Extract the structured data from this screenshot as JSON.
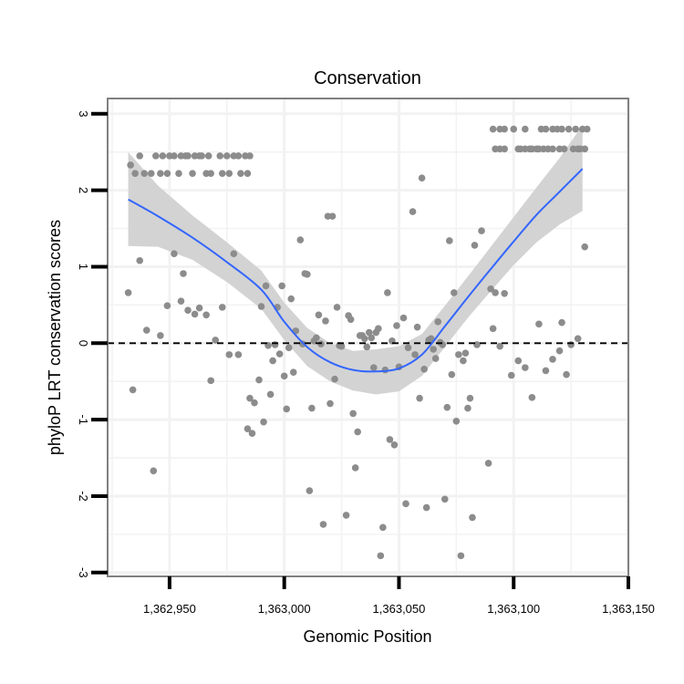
{
  "chart_data": {
    "type": "scatter",
    "title": "Conservation",
    "xlabel": "Genomic Position",
    "ylabel": "phyloP LRT conservation scores",
    "xlim": [
      1362923,
      1363150
    ],
    "ylim": [
      -3.05,
      3.2
    ],
    "x_ticks": [
      {
        "value": 1362950,
        "label": "1,362,950"
      },
      {
        "value": 1363000,
        "label": "1,363,000"
      },
      {
        "value": 1363050,
        "label": "1,363,050"
      },
      {
        "value": 1363100,
        "label": "1,363,100"
      },
      {
        "value": 1363150,
        "label": "1,363,150"
      }
    ],
    "y_ticks": [
      {
        "value": -3,
        "label": "-3"
      },
      {
        "value": -2,
        "label": "-2"
      },
      {
        "value": -1,
        "label": "-1"
      },
      {
        "value": 0,
        "label": "0"
      },
      {
        "value": 1,
        "label": "1"
      },
      {
        "value": 2,
        "label": "2"
      },
      {
        "value": 3,
        "label": "3"
      }
    ],
    "reference_line_y": 0,
    "colors": {
      "points": "#8c8c8c",
      "smooth": "#3366ff",
      "ribbon": "#d3d3d3",
      "grid": "#f2f2f2",
      "frame": "#808080"
    },
    "points": [
      {
        "x": 1362933,
        "y": 2.33
      },
      {
        "x": 1362935,
        "y": 2.22
      },
      {
        "x": 1362937,
        "y": 2.45
      },
      {
        "x": 1362939,
        "y": 2.22
      },
      {
        "x": 1362942,
        "y": 2.22
      },
      {
        "x": 1362944,
        "y": 2.45
      },
      {
        "x": 1362946,
        "y": 2.22
      },
      {
        "x": 1362947,
        "y": 2.45
      },
      {
        "x": 1362949,
        "y": 2.22
      },
      {
        "x": 1362950,
        "y": 2.45
      },
      {
        "x": 1362952,
        "y": 2.45
      },
      {
        "x": 1362954,
        "y": 2.22
      },
      {
        "x": 1362955,
        "y": 2.45
      },
      {
        "x": 1362957,
        "y": 2.45
      },
      {
        "x": 1362958,
        "y": 2.45
      },
      {
        "x": 1362960,
        "y": 2.22
      },
      {
        "x": 1362961,
        "y": 2.45
      },
      {
        "x": 1362963,
        "y": 2.45
      },
      {
        "x": 1362964,
        "y": 2.45
      },
      {
        "x": 1362966,
        "y": 2.22
      },
      {
        "x": 1362967,
        "y": 2.45
      },
      {
        "x": 1362968,
        "y": 2.22
      },
      {
        "x": 1362972,
        "y": 2.45
      },
      {
        "x": 1362973,
        "y": 2.22
      },
      {
        "x": 1362975,
        "y": 2.45
      },
      {
        "x": 1362976,
        "y": 2.22
      },
      {
        "x": 1362978,
        "y": 2.45
      },
      {
        "x": 1362980,
        "y": 2.45
      },
      {
        "x": 1362981,
        "y": 2.22
      },
      {
        "x": 1362983,
        "y": 2.45
      },
      {
        "x": 1362984,
        "y": 2.22
      },
      {
        "x": 1362985,
        "y": 2.45
      },
      {
        "x": 1362932,
        "y": 0.66
      },
      {
        "x": 1362934,
        "y": -0.61
      },
      {
        "x": 1362937,
        "y": 1.08
      },
      {
        "x": 1362940,
        "y": 0.17
      },
      {
        "x": 1362943,
        "y": -1.67
      },
      {
        "x": 1362946,
        "y": 0.1
      },
      {
        "x": 1362949,
        "y": 0.49
      },
      {
        "x": 1362952,
        "y": 1.17
      },
      {
        "x": 1362955,
        "y": 0.55
      },
      {
        "x": 1362956,
        "y": 0.91
      },
      {
        "x": 1362958,
        "y": 0.43
      },
      {
        "x": 1362961,
        "y": 0.38
      },
      {
        "x": 1362963,
        "y": 0.46
      },
      {
        "x": 1362966,
        "y": 0.37
      },
      {
        "x": 1362968,
        "y": -0.49
      },
      {
        "x": 1362970,
        "y": 0.04
      },
      {
        "x": 1362973,
        "y": 0.47
      },
      {
        "x": 1362976,
        "y": -0.15
      },
      {
        "x": 1362978,
        "y": 1.17
      },
      {
        "x": 1362980,
        "y": -0.15
      },
      {
        "x": 1362984,
        "y": -1.12
      },
      {
        "x": 1362985,
        "y": -0.72
      },
      {
        "x": 1362986,
        "y": -1.18
      },
      {
        "x": 1362987,
        "y": -0.78
      },
      {
        "x": 1362989,
        "y": -0.48
      },
      {
        "x": 1362990,
        "y": 0.48
      },
      {
        "x": 1362991,
        "y": -1.03
      },
      {
        "x": 1362992,
        "y": 0.75
      },
      {
        "x": 1362993,
        "y": -0.03
      },
      {
        "x": 1362994,
        "y": -0.67
      },
      {
        "x": 1362995,
        "y": -0.23
      },
      {
        "x": 1362996,
        "y": -0.02
      },
      {
        "x": 1362997,
        "y": 0.47
      },
      {
        "x": 1362998,
        "y": -0.14
      },
      {
        "x": 1362999,
        "y": 0.75
      },
      {
        "x": 1363000,
        "y": -0.43
      },
      {
        "x": 1363001,
        "y": -0.86
      },
      {
        "x": 1363002,
        "y": -0.06
      },
      {
        "x": 1363003,
        "y": 0.58
      },
      {
        "x": 1363004,
        "y": -0.38
      },
      {
        "x": 1363005,
        "y": 0.16
      },
      {
        "x": 1363007,
        "y": 1.35
      },
      {
        "x": 1363008,
        "y": -0.01
      },
      {
        "x": 1363009,
        "y": 0.91
      },
      {
        "x": 1363010,
        "y": 0.9
      },
      {
        "x": 1363011,
        "y": -1.93
      },
      {
        "x": 1363012,
        "y": -0.85
      },
      {
        "x": 1363013,
        "y": 0.03
      },
      {
        "x": 1363014,
        "y": 0.07
      },
      {
        "x": 1363015,
        "y": 0.37
      },
      {
        "x": 1363016,
        "y": -0.01
      },
      {
        "x": 1363017,
        "y": -2.37
      },
      {
        "x": 1363018,
        "y": 0.29
      },
      {
        "x": 1363019,
        "y": 1.66
      },
      {
        "x": 1363020,
        "y": -0.79
      },
      {
        "x": 1363021,
        "y": 1.66
      },
      {
        "x": 1363022,
        "y": -0.47
      },
      {
        "x": 1363023,
        "y": 0.47
      },
      {
        "x": 1363024,
        "y": -0.03
      },
      {
        "x": 1363025,
        "y": -0.04
      },
      {
        "x": 1363027,
        "y": -2.25
      },
      {
        "x": 1363028,
        "y": 0.36
      },
      {
        "x": 1363029,
        "y": 0.31
      },
      {
        "x": 1363030,
        "y": -0.92
      },
      {
        "x": 1363031,
        "y": -1.63
      },
      {
        "x": 1363032,
        "y": -1.16
      },
      {
        "x": 1363033,
        "y": 0.1
      },
      {
        "x": 1363034,
        "y": 0.1
      },
      {
        "x": 1363035,
        "y": 0.06
      },
      {
        "x": 1363036,
        "y": -0.05
      },
      {
        "x": 1363037,
        "y": 0.14
      },
      {
        "x": 1363038,
        "y": 0.07
      },
      {
        "x": 1363039,
        "y": -0.32
      },
      {
        "x": 1363040,
        "y": 0.14
      },
      {
        "x": 1363041,
        "y": 0.19
      },
      {
        "x": 1363042,
        "y": -2.78
      },
      {
        "x": 1363043,
        "y": -2.41
      },
      {
        "x": 1363044,
        "y": -0.35
      },
      {
        "x": 1363045,
        "y": 0.66
      },
      {
        "x": 1363046,
        "y": -1.26
      },
      {
        "x": 1363047,
        "y": 0.03
      },
      {
        "x": 1363048,
        "y": -1.33
      },
      {
        "x": 1363049,
        "y": 0.23
      },
      {
        "x": 1363050,
        "y": -0.31
      },
      {
        "x": 1363052,
        "y": 0.33
      },
      {
        "x": 1363053,
        "y": -2.1
      },
      {
        "x": 1363054,
        "y": -0.06
      },
      {
        "x": 1363056,
        "y": 1.72
      },
      {
        "x": 1363057,
        "y": -0.15
      },
      {
        "x": 1363058,
        "y": 0.21
      },
      {
        "x": 1363059,
        "y": -0.72
      },
      {
        "x": 1363060,
        "y": 2.16
      },
      {
        "x": 1363061,
        "y": -0.34
      },
      {
        "x": 1363062,
        "y": -2.15
      },
      {
        "x": 1363063,
        "y": 0.04
      },
      {
        "x": 1363064,
        "y": 0.06
      },
      {
        "x": 1363065,
        "y": -0.08
      },
      {
        "x": 1363066,
        "y": -0.2
      },
      {
        "x": 1363067,
        "y": 0.28
      },
      {
        "x": 1363068,
        "y": 0.01
      },
      {
        "x": 1363069,
        "y": -0.02
      },
      {
        "x": 1363070,
        "y": -2.04
      },
      {
        "x": 1363071,
        "y": -0.84
      },
      {
        "x": 1363072,
        "y": 1.34
      },
      {
        "x": 1363073,
        "y": -0.41
      },
      {
        "x": 1363074,
        "y": 0.66
      },
      {
        "x": 1363075,
        "y": -1.02
      },
      {
        "x": 1363076,
        "y": -0.15
      },
      {
        "x": 1363077,
        "y": -2.78
      },
      {
        "x": 1363078,
        "y": -0.23
      },
      {
        "x": 1363079,
        "y": -0.13
      },
      {
        "x": 1363080,
        "y": -0.85
      },
      {
        "x": 1363081,
        "y": -0.72
      },
      {
        "x": 1363082,
        "y": -2.28
      },
      {
        "x": 1363083,
        "y": 1.28
      },
      {
        "x": 1363084,
        "y": -0.02
      },
      {
        "x": 1363086,
        "y": 1.47
      },
      {
        "x": 1363089,
        "y": -1.57
      },
      {
        "x": 1363090,
        "y": 0.71
      },
      {
        "x": 1363091,
        "y": 0.19
      },
      {
        "x": 1363092,
        "y": 0.66
      },
      {
        "x": 1363094,
        "y": -0.04
      },
      {
        "x": 1363096,
        "y": 0.65
      },
      {
        "x": 1363099,
        "y": -0.42
      },
      {
        "x": 1363102,
        "y": -0.23
      },
      {
        "x": 1363105,
        "y": -0.32
      },
      {
        "x": 1363108,
        "y": -0.71
      },
      {
        "x": 1363111,
        "y": 0.25
      },
      {
        "x": 1363114,
        "y": -0.36
      },
      {
        "x": 1363117,
        "y": -0.21
      },
      {
        "x": 1363120,
        "y": -0.1
      },
      {
        "x": 1363121,
        "y": 0.27
      },
      {
        "x": 1363123,
        "y": -0.41
      },
      {
        "x": 1363125,
        "y": -0.02
      },
      {
        "x": 1363128,
        "y": 0.06
      },
      {
        "x": 1363131,
        "y": 1.26
      },
      {
        "x": 1363132,
        "y": 2.8
      },
      {
        "x": 1363091,
        "y": 2.8
      },
      {
        "x": 1363092,
        "y": 2.54
      },
      {
        "x": 1363094,
        "y": 2.8
      },
      {
        "x": 1363094,
        "y": 2.54
      },
      {
        "x": 1363096,
        "y": 2.8
      },
      {
        "x": 1363096,
        "y": 2.54
      },
      {
        "x": 1363100,
        "y": 2.8
      },
      {
        "x": 1363102,
        "y": 2.54
      },
      {
        "x": 1363103,
        "y": 2.54
      },
      {
        "x": 1363105,
        "y": 2.8
      },
      {
        "x": 1363105,
        "y": 2.54
      },
      {
        "x": 1363107,
        "y": 2.54
      },
      {
        "x": 1363108,
        "y": 2.54
      },
      {
        "x": 1363110,
        "y": 2.54
      },
      {
        "x": 1363111,
        "y": 2.54
      },
      {
        "x": 1363112,
        "y": 2.8
      },
      {
        "x": 1363113,
        "y": 2.54
      },
      {
        "x": 1363114,
        "y": 2.8
      },
      {
        "x": 1363115,
        "y": 2.54
      },
      {
        "x": 1363117,
        "y": 2.8
      },
      {
        "x": 1363117,
        "y": 2.54
      },
      {
        "x": 1363119,
        "y": 2.8
      },
      {
        "x": 1363120,
        "y": 2.54
      },
      {
        "x": 1363121,
        "y": 2.8
      },
      {
        "x": 1363122,
        "y": 2.54
      },
      {
        "x": 1363124,
        "y": 2.8
      },
      {
        "x": 1363126,
        "y": 2.54
      },
      {
        "x": 1363127,
        "y": 2.8
      },
      {
        "x": 1363128,
        "y": 2.54
      },
      {
        "x": 1363129,
        "y": 2.54
      },
      {
        "x": 1363130,
        "y": 2.8
      },
      {
        "x": 1363131,
        "y": 2.54
      }
    ],
    "smooth": [
      {
        "x": 1362932,
        "y": 1.88,
        "lo": 1.27,
        "hi": 2.5
      },
      {
        "x": 1362945,
        "y": 1.66,
        "lo": 1.26,
        "hi": 2.06
      },
      {
        "x": 1362960,
        "y": 1.38,
        "lo": 1.09,
        "hi": 1.67
      },
      {
        "x": 1362975,
        "y": 1.06,
        "lo": 0.8,
        "hi": 1.32
      },
      {
        "x": 1362990,
        "y": 0.7,
        "lo": 0.45,
        "hi": 0.95
      },
      {
        "x": 1363000,
        "y": 0.28,
        "lo": 0.04,
        "hi": 0.53
      },
      {
        "x": 1363010,
        "y": -0.05,
        "lo": -0.3,
        "hi": 0.2
      },
      {
        "x": 1363020,
        "y": -0.25,
        "lo": -0.5,
        "hi": 0.0
      },
      {
        "x": 1363030,
        "y": -0.35,
        "lo": -0.62,
        "hi": -0.1
      },
      {
        "x": 1363040,
        "y": -0.37,
        "lo": -0.67,
        "hi": -0.08
      },
      {
        "x": 1363050,
        "y": -0.33,
        "lo": -0.63,
        "hi": -0.04
      },
      {
        "x": 1363060,
        "y": -0.15,
        "lo": -0.43,
        "hi": 0.12
      },
      {
        "x": 1363070,
        "y": 0.22,
        "lo": -0.05,
        "hi": 0.49
      },
      {
        "x": 1363080,
        "y": 0.6,
        "lo": 0.33,
        "hi": 0.87
      },
      {
        "x": 1363090,
        "y": 0.97,
        "lo": 0.68,
        "hi": 1.26
      },
      {
        "x": 1363100,
        "y": 1.33,
        "lo": 1.02,
        "hi": 1.65
      },
      {
        "x": 1363110,
        "y": 1.68,
        "lo": 1.32,
        "hi": 2.04
      },
      {
        "x": 1363120,
        "y": 1.98,
        "lo": 1.55,
        "hi": 2.42
      },
      {
        "x": 1363130,
        "y": 2.28,
        "lo": 1.73,
        "hi": 2.85
      }
    ]
  }
}
